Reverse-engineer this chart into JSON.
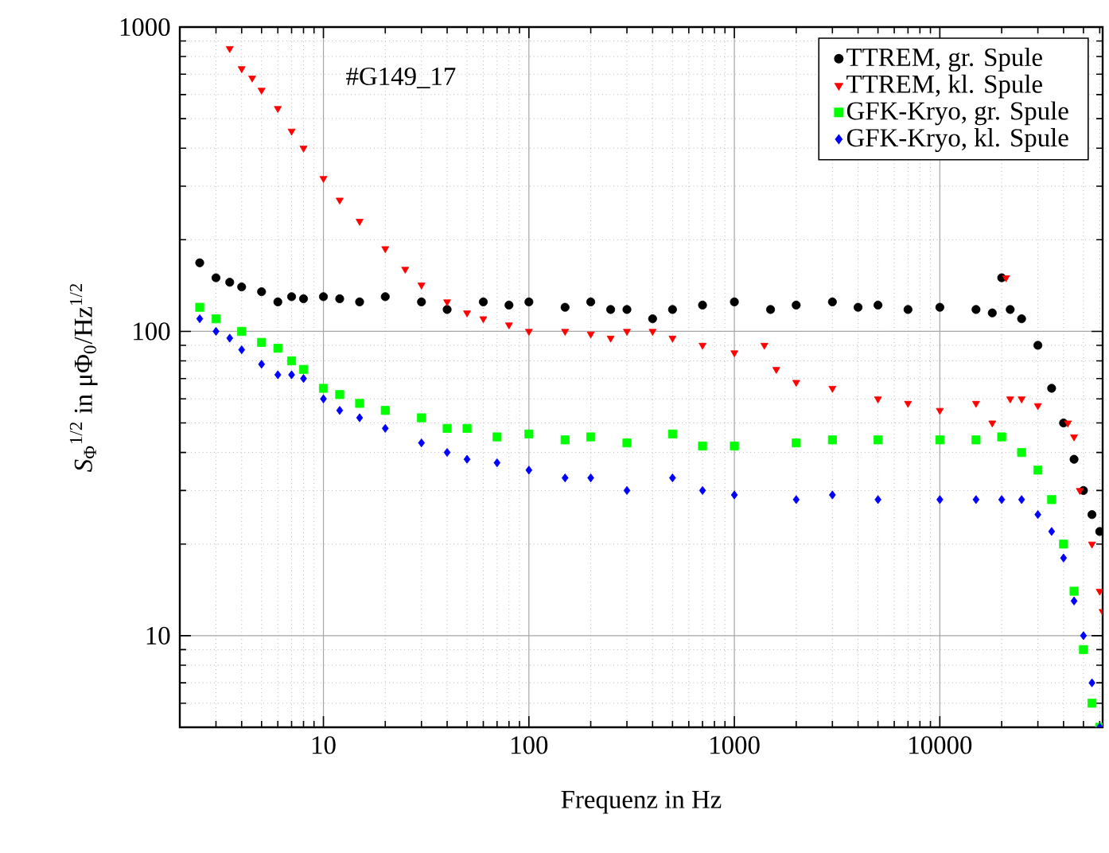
{
  "chart_data": {
    "type": "scatter",
    "xlabel": "Frequenz in Hz",
    "ylabel": "*S*$_{Φ}$$^{1/2}$ in μΦ$_{0}$/Hz$^{1/2}$",
    "annotations": [
      "#G149_17"
    ],
    "log": "xy",
    "grid": true,
    "legend": "top right",
    "xlim": [
      2,
      62000
    ],
    "ylim": [
      5,
      1000
    ],
    "xticks": [
      10,
      100,
      1000,
      10000
    ],
    "yticks": [
      10,
      100,
      1000
    ],
    "series": [
      {
        "name": "TTREM, gr. Spule",
        "color": "#000000",
        "marker": "circle",
        "x": [
          2.5,
          3,
          3.5,
          4,
          5,
          6,
          7,
          8,
          10,
          12,
          15,
          20,
          30,
          40,
          60,
          80,
          100,
          150,
          200,
          250,
          300,
          400,
          500,
          700,
          1000,
          1500,
          2000,
          3000,
          4000,
          5000,
          7000,
          10000,
          15000,
          18000,
          20000,
          22000,
          25000,
          30000,
          35000,
          40000,
          45000,
          50000,
          55000,
          60000
        ],
        "values": [
          168,
          150,
          145,
          140,
          135,
          125,
          130,
          128,
          130,
          128,
          125,
          130,
          125,
          118,
          125,
          122,
          125,
          120,
          125,
          118,
          118,
          110,
          118,
          122,
          125,
          118,
          122,
          125,
          120,
          122,
          118,
          120,
          118,
          115,
          150,
          118,
          110,
          90,
          65,
          50,
          38,
          30,
          25,
          22
        ]
      },
      {
        "name": "TTREM, kl. Spule",
        "color": "#ff0000",
        "marker": "triangle",
        "x": [
          3.5,
          4,
          4.5,
          5,
          6,
          7,
          8,
          10,
          12,
          15,
          20,
          25,
          30,
          40,
          50,
          60,
          80,
          100,
          150,
          200,
          250,
          300,
          400,
          500,
          700,
          1000,
          1400,
          1600,
          2000,
          3000,
          5000,
          7000,
          10000,
          15000,
          18000,
          21000,
          22000,
          25000,
          30000,
          42000,
          45000,
          48000,
          55000,
          60000,
          62000
        ],
        "values": [
          850,
          730,
          680,
          620,
          540,
          455,
          400,
          318,
          270,
          230,
          187,
          160,
          142,
          125,
          115,
          110,
          105,
          100,
          100,
          98,
          95,
          100,
          100,
          95,
          90,
          85,
          90,
          75,
          68,
          65,
          60,
          58,
          55,
          58,
          50,
          150,
          60,
          60,
          57,
          50,
          45,
          30,
          20,
          14,
          12
        ]
      },
      {
        "name": "GFK-Kryo, gr. Spule",
        "color": "#00ff00",
        "marker": "square",
        "x": [
          2.5,
          3,
          4,
          5,
          6,
          7,
          8,
          10,
          12,
          15,
          20,
          30,
          40,
          50,
          70,
          100,
          150,
          200,
          300,
          500,
          700,
          1000,
          2000,
          3000,
          5000,
          10000,
          15000,
          20000,
          25000,
          30000,
          35000,
          40000,
          45000,
          50000,
          55000,
          60000
        ],
        "values": [
          120,
          110,
          100,
          92,
          88,
          80,
          75,
          65,
          62,
          58,
          55,
          52,
          48,
          48,
          45,
          46,
          44,
          45,
          43,
          46,
          42,
          42,
          43,
          44,
          44,
          44,
          44,
          45,
          40,
          35,
          28,
          20,
          14,
          9,
          6,
          5
        ]
      },
      {
        "name": "GFK-Kryo, kl. Spule",
        "color": "#0000ff",
        "marker": "diamond",
        "x": [
          2.5,
          3,
          3.5,
          4,
          5,
          6,
          7,
          8,
          10,
          12,
          15,
          20,
          30,
          40,
          50,
          70,
          100,
          150,
          200,
          300,
          500,
          700,
          1000,
          2000,
          3000,
          5000,
          10000,
          15000,
          20000,
          25000,
          30000,
          35000,
          40000,
          45000,
          50000,
          55000,
          60000
        ],
        "values": [
          110,
          100,
          95,
          87,
          78,
          72,
          72,
          70,
          60,
          55,
          52,
          48,
          43,
          40,
          38,
          37,
          35,
          33,
          33,
          30,
          33,
          30,
          29,
          28,
          29,
          28,
          28,
          28,
          28,
          28,
          25,
          22,
          18,
          13,
          10,
          7,
          5
        ]
      }
    ]
  }
}
